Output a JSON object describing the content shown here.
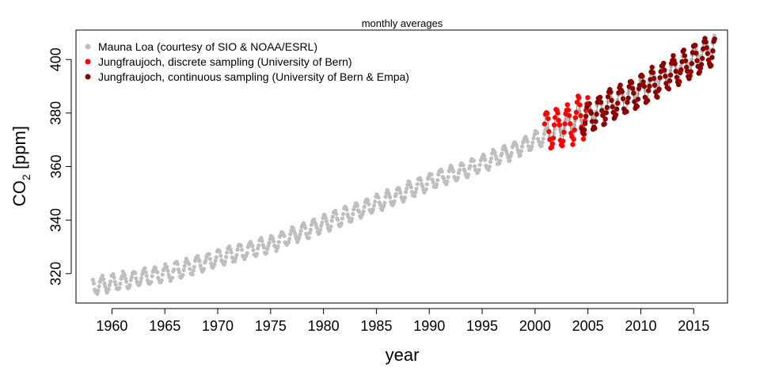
{
  "chart_data": {
    "type": "scatter",
    "title": "monthly averages",
    "xlabel": "year",
    "ylabel_main": "CO",
    "ylabel_sub": "2",
    "ylabel_unit": " [ppm]",
    "xlim": [
      1956.6,
      2018.2
    ],
    "ylim": [
      309,
      411
    ],
    "x_ticks": [
      1960,
      1965,
      1970,
      1975,
      1980,
      1985,
      1990,
      1995,
      2000,
      2005,
      2010,
      2015
    ],
    "x_tick_labels": [
      "1960",
      "1965",
      "1970",
      "1975",
      "1980",
      "1985",
      "1990",
      "1995",
      "2000",
      "2005",
      "2010",
      "2015"
    ],
    "y_ticks": [
      320,
      340,
      360,
      380,
      400
    ],
    "y_tick_labels": [
      "320",
      "340",
      "360",
      "380",
      "400"
    ],
    "legend_position": "top-left",
    "grid": false,
    "series": [
      {
        "name": "Mauna Loa (courtesy of SIO & NOAA/ESRL)",
        "color": "#bebebe",
        "connected": false,
        "x_start": 1958.2,
        "x_end": 2017.0,
        "step_months": 1,
        "trend_points": [
          [
            1958,
            315.2
          ],
          [
            1965,
            320.0
          ],
          [
            1970,
            325.7
          ],
          [
            1975,
            331.1
          ],
          [
            1980,
            338.7
          ],
          [
            1985,
            346.1
          ],
          [
            1990,
            354.4
          ],
          [
            1995,
            361.0
          ],
          [
            2000,
            369.7
          ],
          [
            2005,
            379.8
          ],
          [
            2010,
            389.9
          ],
          [
            2015,
            401.0
          ],
          [
            2017,
            406.8
          ]
        ],
        "seasonal_amplitude": 3.0
      },
      {
        "name": "Jungfraujoch, discrete sampling (University of Bern)",
        "color": "#ff0000",
        "connected": true,
        "x_start": 2000.9,
        "x_end": 2005.0,
        "step_months": 1,
        "trend_points": [
          [
            2000.9,
            373.0
          ],
          [
            2003,
            375.5
          ],
          [
            2005,
            380.0
          ]
        ],
        "seasonal_amplitude": 7.5
      },
      {
        "name": "Jungfraujoch, continuous sampling (University of Bern & Empa)",
        "color": "#8b0000",
        "connected": true,
        "x_start": 2004.4,
        "x_end": 2017.0,
        "step_months": 1,
        "trend_points": [
          [
            2004.4,
            377.5
          ],
          [
            2005,
            378.5
          ],
          [
            2010,
            388.5
          ],
          [
            2015,
            399.5
          ],
          [
            2017,
            403.5
          ]
        ],
        "seasonal_amplitude": 5.5
      }
    ]
  }
}
